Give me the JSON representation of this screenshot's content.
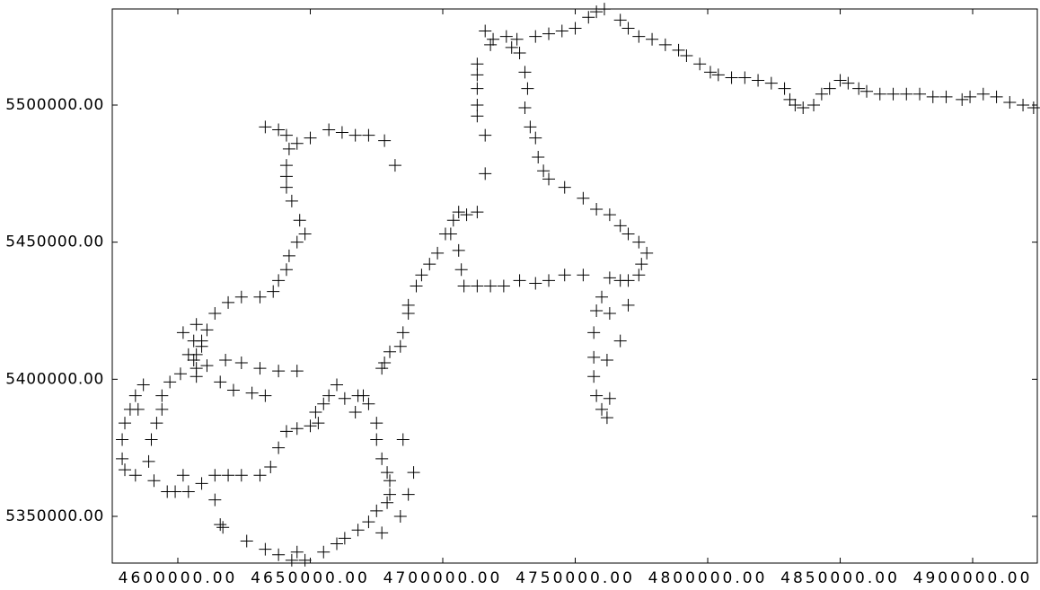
{
  "chart_data": {
    "type": "scatter",
    "marker": "plus",
    "color": "#000000",
    "xlim": [
      4575250,
      4924400
    ],
    "ylim": [
      5332970,
      5535040
    ],
    "xticks": [
      {
        "value": 4600000,
        "label": "4600000.00"
      },
      {
        "value": 4650000,
        "label": "4650000.00"
      },
      {
        "value": 4700000,
        "label": "4700000.00"
      },
      {
        "value": 4750000,
        "label": "4750000.00"
      },
      {
        "value": 4800000,
        "label": "4800000.00"
      },
      {
        "value": 4850000,
        "label": "4850000.00"
      },
      {
        "value": 4900000,
        "label": "4900000.00"
      }
    ],
    "yticks": [
      {
        "value": 5350000,
        "label": "5350000.00"
      },
      {
        "value": 5400000,
        "label": "5400000.00"
      },
      {
        "value": 5450000,
        "label": "5450000.00"
      },
      {
        "value": 5500000,
        "label": "5500000.00"
      }
    ],
    "x": [
      4758000,
      4761000,
      4767000,
      4770000,
      4774000,
      4779000,
      4784000,
      4789000,
      4792000,
      4797000,
      4801000,
      4804000,
      4809000,
      4814000,
      4819000,
      4824000,
      4829000,
      4831000,
      4833000,
      4836000,
      4840000,
      4843000,
      4846000,
      4850000,
      4853000,
      4857000,
      4860000,
      4865000,
      4870000,
      4875000,
      4880000,
      4885000,
      4890000,
      4896000,
      4899000,
      4904000,
      4909000,
      4914000,
      4919000,
      4923000,
      4755000,
      4750000,
      4745000,
      4740000,
      4735000,
      4728000,
      4726000,
      4724000,
      4719000,
      4716000,
      4718000,
      4713000,
      4713000,
      4713000,
      4713000,
      4713000,
      4716000,
      4716000,
      4729000,
      4731000,
      4732000,
      4731000,
      4733000,
      4735000,
      4736000,
      4738000,
      4740000,
      4746000,
      4753000,
      4758000,
      4763000,
      4767000,
      4770000,
      4774000,
      4777000,
      4775000,
      4774000,
      4770000,
      4767000,
      4763000,
      4760000,
      4758000,
      4757000,
      4757000,
      4757000,
      4758000,
      4760000,
      4762000,
      4763000,
      4762000,
      4767000,
      4770000,
      4763000,
      4753000,
      4746000,
      4740000,
      4735000,
      4729000,
      4723000,
      4718000,
      4713000,
      4708000,
      4707000,
      4706000,
      4703000,
      4704000,
      4706000,
      4709000,
      4713000,
      4701000,
      4698000,
      4695000,
      4692000,
      4690000,
      4687000,
      4687000,
      4685000,
      4684000,
      4680000,
      4678000,
      4677000,
      4670000,
      4672000,
      4675000,
      4675000,
      4677000,
      4679000,
      4680000,
      4680000,
      4679000,
      4675000,
      4672000,
      4668000,
      4663000,
      4660000,
      4655000,
      4648000,
      4643000,
      4638000,
      4633000,
      4626000,
      4616000,
      4614000,
      4609000,
      4604000,
      4599000,
      4596000,
      4591000,
      4589000,
      4590000,
      4592000,
      4594000,
      4594000,
      4597000,
      4601000,
      4606000,
      4607000,
      4609000,
      4611000,
      4614000,
      4619000,
      4624000,
      4631000,
      4636000,
      4638000,
      4641000,
      4642000,
      4645000,
      4648000,
      4646000,
      4643000,
      4641000,
      4641000,
      4641000,
      4642000,
      4641000,
      4638000,
      4633000,
      4645000,
      4650000,
      4657000,
      4662000,
      4667000,
      4672000,
      4678000,
      4682000,
      4587000,
      4584000,
      4582000,
      4580000,
      4579000,
      4579000,
      4580000,
      4584000,
      4602000,
      4607000,
      4611000,
      4616000,
      4621000,
      4628000,
      4633000,
      4618000,
      4624000,
      4631000,
      4638000,
      4645000,
      4604000,
      4606000,
      4602000,
      4607000,
      4609000,
      4607000,
      4585000,
      4635000,
      4631000,
      4624000,
      4619000,
      4638000,
      4641000,
      4645000,
      4650000,
      4653000,
      4657000,
      4660000,
      4663000,
      4667000,
      4668000,
      4652000,
      4655000,
      4685000,
      4689000,
      4687000,
      4684000,
      4677000,
      4614000,
      4617000,
      4645000
    ],
    "values": [
      5534000,
      5535000,
      5531000,
      5528000,
      5525000,
      5524000,
      5522000,
      5520000,
      5518000,
      5515000,
      5512000,
      5511000,
      5510000,
      5510000,
      5509000,
      5508000,
      5506000,
      5502000,
      5500000,
      5499000,
      5500000,
      5504000,
      5506000,
      5509000,
      5508000,
      5506000,
      5505000,
      5504000,
      5504000,
      5504000,
      5504000,
      5503000,
      5503000,
      5502000,
      5503000,
      5504000,
      5503000,
      5501000,
      5500000,
      5499000,
      5532000,
      5528000,
      5527000,
      5526000,
      5525000,
      5524000,
      5521000,
      5525000,
      5524000,
      5527000,
      5522000,
      5515000,
      5511000,
      5506000,
      5500000,
      5496000,
      5489000,
      5475000,
      5519000,
      5512000,
      5506000,
      5499000,
      5492000,
      5488000,
      5481000,
      5476000,
      5473000,
      5470000,
      5466000,
      5462000,
      5460000,
      5456000,
      5453000,
      5450000,
      5446000,
      5442000,
      5438000,
      5436000,
      5436000,
      5437000,
      5430000,
      5425000,
      5417000,
      5408000,
      5401000,
      5394000,
      5389000,
      5386000,
      5393000,
      5407000,
      5414000,
      5427000,
      5424000,
      5438000,
      5438000,
      5436000,
      5435000,
      5436000,
      5434000,
      5434000,
      5434000,
      5434000,
      5440000,
      5447000,
      5453000,
      5458000,
      5461000,
      5460000,
      5461000,
      5453000,
      5446000,
      5442000,
      5438000,
      5434000,
      5427000,
      5424000,
      5417000,
      5412000,
      5410000,
      5406000,
      5404000,
      5394000,
      5391000,
      5384000,
      5378000,
      5371000,
      5366000,
      5363000,
      5358000,
      5355000,
      5352000,
      5348000,
      5345000,
      5342000,
      5340000,
      5337000,
      5334000,
      5334000,
      5336000,
      5338000,
      5341000,
      5347000,
      5365000,
      5362000,
      5359000,
      5359000,
      5359000,
      5363000,
      5370000,
      5378000,
      5384000,
      5389000,
      5394000,
      5399000,
      5402000,
      5407000,
      5409000,
      5414000,
      5418000,
      5424000,
      5428000,
      5430000,
      5430000,
      5432000,
      5436000,
      5440000,
      5445000,
      5450000,
      5453000,
      5458000,
      5465000,
      5470000,
      5474000,
      5478000,
      5484000,
      5489000,
      5491000,
      5492000,
      5486000,
      5488000,
      5491000,
      5490000,
      5489000,
      5489000,
      5487000,
      5478000,
      5398000,
      5394000,
      5389000,
      5384000,
      5378000,
      5371000,
      5367000,
      5365000,
      5365000,
      5404000,
      5405000,
      5399000,
      5396000,
      5395000,
      5394000,
      5407000,
      5406000,
      5404000,
      5403000,
      5403000,
      5409000,
      5414000,
      5417000,
      5420000,
      5412000,
      5401000,
      5389000,
      5368000,
      5365000,
      5365000,
      5365000,
      5375000,
      5381000,
      5382000,
      5383000,
      5384000,
      5394000,
      5398000,
      5393000,
      5388000,
      5394000,
      5388000,
      5391000,
      5378000,
      5366000,
      5358000,
      5350000,
      5344000,
      5356000,
      5346000,
      5337000
    ]
  }
}
